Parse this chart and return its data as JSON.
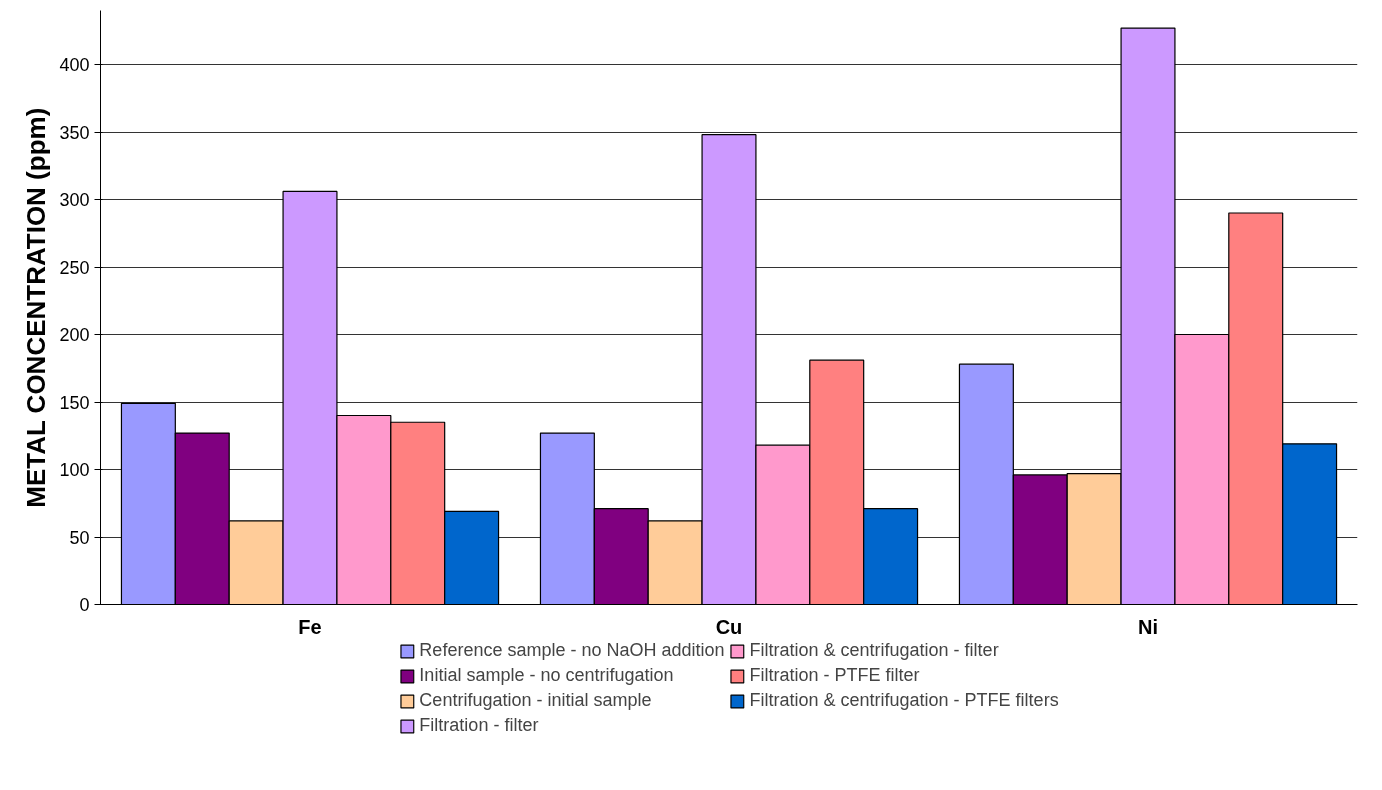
{
  "chart_data": {
    "type": "bar",
    "ylabel": "METAL CONCENTRATION (ppm)",
    "categories": [
      "Fe",
      "Cu",
      "Ni"
    ],
    "series": [
      {
        "name": "Reference sample - no NaOH addition",
        "color": "#9999ff",
        "values": [
          149,
          127,
          178
        ]
      },
      {
        "name": "Initial sample - no centrifugation",
        "color": "#800080",
        "values": [
          127,
          71,
          96
        ]
      },
      {
        "name": "Centrifugation - initial sample",
        "color": "#ffcc99",
        "values": [
          62,
          62,
          97
        ]
      },
      {
        "name": "Filtration - filter",
        "color": "#cc99ff",
        "values": [
          306,
          348,
          427
        ]
      },
      {
        "name": "Filtration & centrifugation - filter",
        "color": "#ff99cc",
        "values": [
          140,
          118,
          200
        ]
      },
      {
        "name": "Filtration - PTFE filter",
        "color": "#ff8080",
        "values": [
          135,
          181,
          290
        ]
      },
      {
        "name": "Filtration & centrifugation - PTFE filters",
        "color": "#0066cc",
        "values": [
          69,
          71,
          119
        ]
      }
    ],
    "ylim": [
      0,
      440
    ],
    "yticks": [
      0,
      50,
      100,
      150,
      200,
      250,
      300,
      350,
      400
    ],
    "grid": "y",
    "legend": "bottom"
  }
}
